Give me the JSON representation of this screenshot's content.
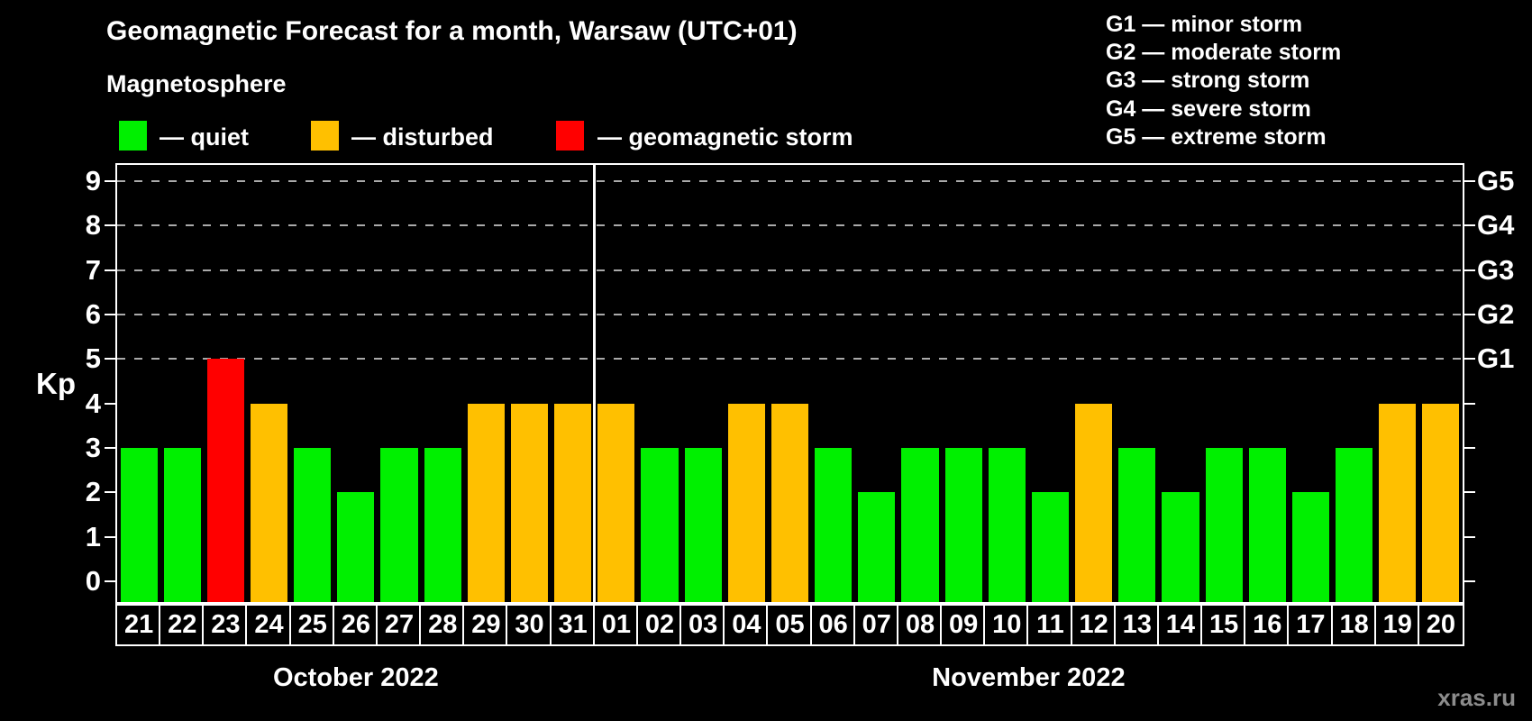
{
  "title": "Geomagnetic Forecast for a month, Warsaw (UTC+01)",
  "subtitle": "Magnetosphere",
  "legend": [
    {
      "key": "quiet",
      "label": "— quiet",
      "color": "#00f000"
    },
    {
      "key": "disturbed",
      "label": "— disturbed",
      "color": "#ffc000"
    },
    {
      "key": "storm",
      "label": "— geomagnetic storm",
      "color": "#ff0000"
    }
  ],
  "storm_scale_legend": [
    "G1 — minor storm",
    "G2 — moderate storm",
    "G3 — strong storm",
    "G4 — severe storm",
    "G5 — extreme storm"
  ],
  "watermark": "xras.ru",
  "chart_data": {
    "type": "bar",
    "title": "Geomagnetic Forecast for a month, Warsaw (UTC+01)",
    "ylabel": "Kp",
    "ylim": [
      0,
      9
    ],
    "yticks": [
      0,
      1,
      2,
      3,
      4,
      5,
      6,
      7,
      8,
      9
    ],
    "grid_levels": [
      5,
      6,
      7,
      8,
      9
    ],
    "grid_on": true,
    "right_axis_labels": [
      {
        "kp": 5,
        "label": "G1"
      },
      {
        "kp": 6,
        "label": "G2"
      },
      {
        "kp": 7,
        "label": "G3"
      },
      {
        "kp": 8,
        "label": "G4"
      },
      {
        "kp": 9,
        "label": "G5"
      }
    ],
    "status_colors": {
      "quiet": "#00f000",
      "disturbed": "#ffc000",
      "storm": "#ff0000"
    },
    "months": [
      {
        "label": "October 2022",
        "days": [
          {
            "date": "21",
            "kp": 3,
            "status": "quiet"
          },
          {
            "date": "22",
            "kp": 3,
            "status": "quiet"
          },
          {
            "date": "23",
            "kp": 5,
            "status": "storm"
          },
          {
            "date": "24",
            "kp": 4,
            "status": "disturbed"
          },
          {
            "date": "25",
            "kp": 3,
            "status": "quiet"
          },
          {
            "date": "26",
            "kp": 2,
            "status": "quiet"
          },
          {
            "date": "27",
            "kp": 3,
            "status": "quiet"
          },
          {
            "date": "28",
            "kp": 3,
            "status": "quiet"
          },
          {
            "date": "29",
            "kp": 4,
            "status": "disturbed"
          },
          {
            "date": "30",
            "kp": 4,
            "status": "disturbed"
          },
          {
            "date": "31",
            "kp": 4,
            "status": "disturbed"
          }
        ]
      },
      {
        "label": "November 2022",
        "days": [
          {
            "date": "01",
            "kp": 4,
            "status": "disturbed"
          },
          {
            "date": "02",
            "kp": 3,
            "status": "quiet"
          },
          {
            "date": "03",
            "kp": 3,
            "status": "quiet"
          },
          {
            "date": "04",
            "kp": 4,
            "status": "disturbed"
          },
          {
            "date": "05",
            "kp": 4,
            "status": "disturbed"
          },
          {
            "date": "06",
            "kp": 3,
            "status": "quiet"
          },
          {
            "date": "07",
            "kp": 2,
            "status": "quiet"
          },
          {
            "date": "08",
            "kp": 3,
            "status": "quiet"
          },
          {
            "date": "09",
            "kp": 3,
            "status": "quiet"
          },
          {
            "date": "10",
            "kp": 3,
            "status": "quiet"
          },
          {
            "date": "11",
            "kp": 2,
            "status": "quiet"
          },
          {
            "date": "12",
            "kp": 4,
            "status": "disturbed"
          },
          {
            "date": "13",
            "kp": 3,
            "status": "quiet"
          },
          {
            "date": "14",
            "kp": 2,
            "status": "quiet"
          },
          {
            "date": "15",
            "kp": 3,
            "status": "quiet"
          },
          {
            "date": "16",
            "kp": 3,
            "status": "quiet"
          },
          {
            "date": "17",
            "kp": 2,
            "status": "quiet"
          },
          {
            "date": "18",
            "kp": 3,
            "status": "quiet"
          },
          {
            "date": "19",
            "kp": 4,
            "status": "disturbed"
          },
          {
            "date": "20",
            "kp": 4,
            "status": "disturbed"
          }
        ]
      }
    ]
  }
}
